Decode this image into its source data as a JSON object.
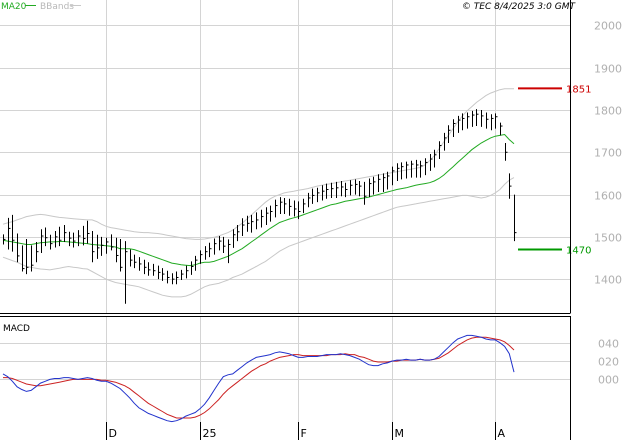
{
  "header": {
    "legend_ma": "MA20",
    "legend_bb": "BBands",
    "copyright": "© TEC 8/4/2025 3:0 GMT"
  },
  "colors": {
    "ma": "#22aa22",
    "bbands": "#c8c8c8",
    "price": "#000000",
    "grid": "#d4d4d4",
    "macd": "#2233cc",
    "signal": "#cc2222",
    "resistance": "#cc0000",
    "support": "#009900",
    "tick_text": "#b0b0b0"
  },
  "chart_data": [
    {
      "type": "line",
      "title": "",
      "ylim": [
        1320,
        2060
      ],
      "y_ticks": [
        "2000",
        "1900",
        "1800",
        "1700",
        "1600",
        "1500",
        "1400"
      ],
      "x_ticks": [
        "D",
        "25",
        "F",
        "M",
        "A"
      ],
      "levels": [
        {
          "label": "1851",
          "value": 1851,
          "kind": "resistance"
        },
        {
          "label": "1470",
          "value": 1470,
          "kind": "support"
        }
      ],
      "bars": [
        [
          1506,
          1482,
          1494
        ],
        [
          1545,
          1470,
          1520
        ],
        [
          1552,
          1465,
          1492
        ],
        [
          1508,
          1440,
          1455
        ],
        [
          1480,
          1418,
          1425
        ],
        [
          1495,
          1412,
          1428
        ],
        [
          1480,
          1418,
          1433
        ],
        [
          1488,
          1440,
          1465
        ],
        [
          1518,
          1462,
          1502
        ],
        [
          1522,
          1478,
          1498
        ],
        [
          1505,
          1470,
          1484
        ],
        [
          1514,
          1475,
          1500
        ],
        [
          1524,
          1478,
          1492
        ],
        [
          1528,
          1488,
          1510
        ],
        [
          1512,
          1478,
          1497
        ],
        [
          1510,
          1475,
          1490
        ],
        [
          1516,
          1478,
          1502
        ],
        [
          1526,
          1480,
          1496
        ],
        [
          1538,
          1484,
          1508
        ],
        [
          1514,
          1440,
          1465
        ],
        [
          1505,
          1448,
          1474
        ],
        [
          1500,
          1455,
          1480
        ],
        [
          1498,
          1460,
          1488
        ],
        [
          1506,
          1468,
          1476
        ],
        [
          1498,
          1440,
          1456
        ],
        [
          1495,
          1418,
          1428
        ],
        [
          1490,
          1342,
          1465
        ],
        [
          1470,
          1430,
          1445
        ],
        [
          1458,
          1426,
          1440
        ],
        [
          1452,
          1420,
          1436
        ],
        [
          1446,
          1412,
          1428
        ],
        [
          1440,
          1408,
          1422
        ],
        [
          1436,
          1408,
          1420
        ],
        [
          1432,
          1400,
          1416
        ],
        [
          1426,
          1396,
          1412
        ],
        [
          1420,
          1390,
          1404
        ],
        [
          1414,
          1388,
          1400
        ],
        [
          1418,
          1388,
          1404
        ],
        [
          1422,
          1398,
          1412
        ],
        [
          1432,
          1402,
          1420
        ],
        [
          1442,
          1410,
          1430
        ],
        [
          1455,
          1420,
          1445
        ],
        [
          1468,
          1436,
          1458
        ],
        [
          1478,
          1446,
          1465
        ],
        [
          1486,
          1452,
          1472
        ],
        [
          1496,
          1458,
          1484
        ],
        [
          1502,
          1468,
          1490
        ],
        [
          1500,
          1462,
          1478
        ],
        [
          1494,
          1438,
          1482
        ],
        [
          1518,
          1474,
          1505
        ],
        [
          1528,
          1490,
          1512
        ],
        [
          1544,
          1502,
          1528
        ],
        [
          1550,
          1512,
          1532
        ],
        [
          1552,
          1510,
          1536
        ],
        [
          1558,
          1518,
          1540
        ],
        [
          1564,
          1522,
          1548
        ],
        [
          1570,
          1528,
          1556
        ],
        [
          1574,
          1536,
          1560
        ],
        [
          1588,
          1546,
          1574
        ],
        [
          1594,
          1554,
          1582
        ],
        [
          1592,
          1554,
          1578
        ],
        [
          1590,
          1550,
          1572
        ],
        [
          1586,
          1548,
          1566
        ],
        [
          1584,
          1542,
          1560
        ],
        [
          1590,
          1556,
          1578
        ],
        [
          1604,
          1570,
          1592
        ],
        [
          1614,
          1578,
          1598
        ],
        [
          1616,
          1582,
          1604
        ],
        [
          1622,
          1586,
          1608
        ],
        [
          1626,
          1590,
          1612
        ],
        [
          1628,
          1592,
          1614
        ],
        [
          1630,
          1592,
          1616
        ],
        [
          1632,
          1596,
          1618
        ],
        [
          1628,
          1594,
          1612
        ],
        [
          1634,
          1598,
          1622
        ],
        [
          1636,
          1600,
          1624
        ],
        [
          1632,
          1596,
          1620
        ],
        [
          1630,
          1576,
          1596
        ],
        [
          1638,
          1594,
          1626
        ],
        [
          1642,
          1600,
          1630
        ],
        [
          1648,
          1606,
          1636
        ],
        [
          1650,
          1606,
          1640
        ],
        [
          1654,
          1612,
          1644
        ],
        [
          1666,
          1622,
          1656
        ],
        [
          1674,
          1632,
          1662
        ],
        [
          1676,
          1636,
          1666
        ],
        [
          1678,
          1638,
          1670
        ],
        [
          1680,
          1640,
          1672
        ],
        [
          1682,
          1640,
          1670
        ],
        [
          1680,
          1640,
          1668
        ],
        [
          1686,
          1646,
          1676
        ],
        [
          1696,
          1656,
          1684
        ],
        [
          1706,
          1664,
          1694
        ],
        [
          1726,
          1684,
          1716
        ],
        [
          1746,
          1704,
          1734
        ],
        [
          1764,
          1722,
          1752
        ],
        [
          1778,
          1736,
          1768
        ],
        [
          1786,
          1746,
          1776
        ],
        [
          1792,
          1752,
          1780
        ],
        [
          1794,
          1756,
          1784
        ],
        [
          1798,
          1760,
          1788
        ],
        [
          1802,
          1762,
          1790
        ],
        [
          1800,
          1760,
          1786
        ],
        [
          1794,
          1756,
          1778
        ],
        [
          1790,
          1752,
          1780
        ],
        [
          1792,
          1756,
          1784
        ],
        [
          1770,
          1740,
          1762
        ],
        [
          1722,
          1680,
          1700
        ],
        [
          1650,
          1590,
          1620
        ],
        [
          1600,
          1490,
          1510
        ]
      ],
      "ma20": [
        1492,
        1490,
        1488,
        1486,
        1484,
        1482,
        1482,
        1484,
        1486,
        1487,
        1488,
        1488,
        1489,
        1489,
        1488,
        1487,
        1486,
        1485,
        1484,
        1482,
        1481,
        1480,
        1479,
        1478,
        1476,
        1472,
        1472,
        1472,
        1470,
        1466,
        1462,
        1458,
        1454,
        1450,
        1446,
        1442,
        1438,
        1436,
        1434,
        1433,
        1432,
        1434,
        1438,
        1440,
        1440,
        1442,
        1446,
        1450,
        1454,
        1460,
        1466,
        1472,
        1480,
        1488,
        1496,
        1504,
        1512,
        1520,
        1527,
        1534,
        1538,
        1542,
        1545,
        1548,
        1552,
        1556,
        1560,
        1564,
        1568,
        1572,
        1576,
        1578,
        1581,
        1584,
        1586,
        1588,
        1590,
        1592,
        1594,
        1597,
        1600,
        1603,
        1606,
        1609,
        1612,
        1614,
        1616,
        1619,
        1622,
        1624,
        1626,
        1628,
        1632,
        1638,
        1646,
        1656,
        1666,
        1676,
        1686,
        1696,
        1706,
        1714,
        1722,
        1728,
        1734,
        1738,
        1740,
        1742,
        1730,
        1720
      ],
      "bb_upper": [
        1530,
        1533,
        1536,
        1540,
        1544,
        1548,
        1550,
        1552,
        1553,
        1552,
        1550,
        1548,
        1546,
        1545,
        1544,
        1543,
        1542,
        1541,
        1540,
        1540,
        1536,
        1530,
        1525,
        1522,
        1520,
        1518,
        1516,
        1514,
        1512,
        1511,
        1510,
        1510,
        1509,
        1508,
        1506,
        1504,
        1502,
        1500,
        1498,
        1496,
        1495,
        1494,
        1494,
        1495,
        1497,
        1499,
        1502,
        1506,
        1510,
        1516,
        1524,
        1532,
        1542,
        1552,
        1562,
        1572,
        1582,
        1590,
        1596,
        1600,
        1604,
        1606,
        1608,
        1610,
        1612,
        1614,
        1617,
        1620,
        1622,
        1624,
        1626,
        1628,
        1630,
        1632,
        1634,
        1636,
        1638,
        1640,
        1642,
        1644,
        1646,
        1648,
        1650,
        1652,
        1654,
        1656,
        1658,
        1660,
        1662,
        1664,
        1670,
        1680,
        1692,
        1708,
        1724,
        1740,
        1756,
        1772,
        1786,
        1798,
        1808,
        1818,
        1826,
        1834,
        1840,
        1844,
        1848,
        1850,
        1850,
        1850
      ],
      "bb_lower": [
        1452,
        1448,
        1444,
        1440,
        1435,
        1430,
        1428,
        1426,
        1424,
        1423,
        1422,
        1424,
        1426,
        1428,
        1430,
        1428,
        1427,
        1425,
        1424,
        1418,
        1412,
        1406,
        1400,
        1396,
        1392,
        1390,
        1388,
        1386,
        1384,
        1382,
        1378,
        1374,
        1370,
        1366,
        1362,
        1360,
        1358,
        1358,
        1358,
        1360,
        1364,
        1370,
        1376,
        1382,
        1386,
        1388,
        1390,
        1394,
        1398,
        1404,
        1408,
        1412,
        1418,
        1424,
        1430,
        1436,
        1442,
        1450,
        1458,
        1466,
        1472,
        1478,
        1482,
        1486,
        1490,
        1494,
        1498,
        1502,
        1506,
        1510,
        1514,
        1518,
        1522,
        1526,
        1530,
        1534,
        1538,
        1542,
        1546,
        1550,
        1554,
        1558,
        1562,
        1566,
        1570,
        1572,
        1574,
        1576,
        1578,
        1580,
        1582,
        1584,
        1586,
        1588,
        1590,
        1592,
        1594,
        1596,
        1598,
        1598,
        1596,
        1594,
        1592,
        1594,
        1598,
        1604,
        1612,
        1624,
        1634,
        1640
      ]
    },
    {
      "type": "line",
      "title": "MACD",
      "ylim": [
        -0.66,
        0.68
      ],
      "y_ticks": [
        "040",
        "020",
        "000"
      ],
      "series": [
        {
          "name": "MACD",
          "values": [
            0.06,
            0.03,
            -0.02,
            -0.08,
            -0.11,
            -0.13,
            -0.12,
            -0.08,
            -0.04,
            -0.02,
            0.0,
            0.01,
            0.01,
            0.02,
            0.02,
            0.01,
            0.0,
            0.01,
            0.02,
            0.01,
            -0.01,
            -0.02,
            -0.02,
            -0.04,
            -0.07,
            -0.1,
            -0.15,
            -0.2,
            -0.26,
            -0.31,
            -0.34,
            -0.37,
            -0.39,
            -0.41,
            -0.43,
            -0.45,
            -0.46,
            -0.45,
            -0.43,
            -0.4,
            -0.38,
            -0.36,
            -0.32,
            -0.27,
            -0.2,
            -0.12,
            -0.04,
            0.03,
            0.05,
            0.06,
            0.1,
            0.14,
            0.18,
            0.21,
            0.24,
            0.25,
            0.26,
            0.27,
            0.29,
            0.3,
            0.29,
            0.28,
            0.26,
            0.24,
            0.24,
            0.25,
            0.25,
            0.25,
            0.26,
            0.27,
            0.27,
            0.27,
            0.28,
            0.27,
            0.26,
            0.24,
            0.22,
            0.19,
            0.16,
            0.15,
            0.15,
            0.17,
            0.18,
            0.2,
            0.21,
            0.21,
            0.22,
            0.21,
            0.21,
            0.22,
            0.21,
            0.21,
            0.22,
            0.25,
            0.3,
            0.35,
            0.4,
            0.44,
            0.46,
            0.48,
            0.48,
            0.47,
            0.46,
            0.44,
            0.43,
            0.43,
            0.4,
            0.36,
            0.28,
            0.08
          ]
        },
        {
          "name": "Signal",
          "values": [
            0.02,
            0.02,
            0.01,
            -0.01,
            -0.03,
            -0.05,
            -0.06,
            -0.07,
            -0.07,
            -0.06,
            -0.05,
            -0.04,
            -0.03,
            -0.02,
            -0.01,
            0.0,
            0.0,
            0.0,
            0.0,
            0.0,
            0.0,
            -0.01,
            -0.01,
            -0.02,
            -0.03,
            -0.05,
            -0.07,
            -0.1,
            -0.14,
            -0.18,
            -0.22,
            -0.26,
            -0.29,
            -0.32,
            -0.35,
            -0.38,
            -0.4,
            -0.42,
            -0.42,
            -0.42,
            -0.42,
            -0.41,
            -0.39,
            -0.36,
            -0.32,
            -0.27,
            -0.22,
            -0.16,
            -0.11,
            -0.07,
            -0.03,
            0.01,
            0.05,
            0.09,
            0.12,
            0.15,
            0.17,
            0.2,
            0.22,
            0.24,
            0.25,
            0.26,
            0.27,
            0.27,
            0.26,
            0.26,
            0.26,
            0.26,
            0.26,
            0.26,
            0.27,
            0.27,
            0.27,
            0.28,
            0.27,
            0.27,
            0.25,
            0.24,
            0.22,
            0.2,
            0.19,
            0.19,
            0.19,
            0.2,
            0.2,
            0.21,
            0.21,
            0.21,
            0.21,
            0.22,
            0.21,
            0.21,
            0.22,
            0.23,
            0.26,
            0.29,
            0.33,
            0.37,
            0.4,
            0.43,
            0.45,
            0.46,
            0.46,
            0.46,
            0.45,
            0.44,
            0.43,
            0.41,
            0.37,
            0.32
          ]
        }
      ]
    }
  ]
}
